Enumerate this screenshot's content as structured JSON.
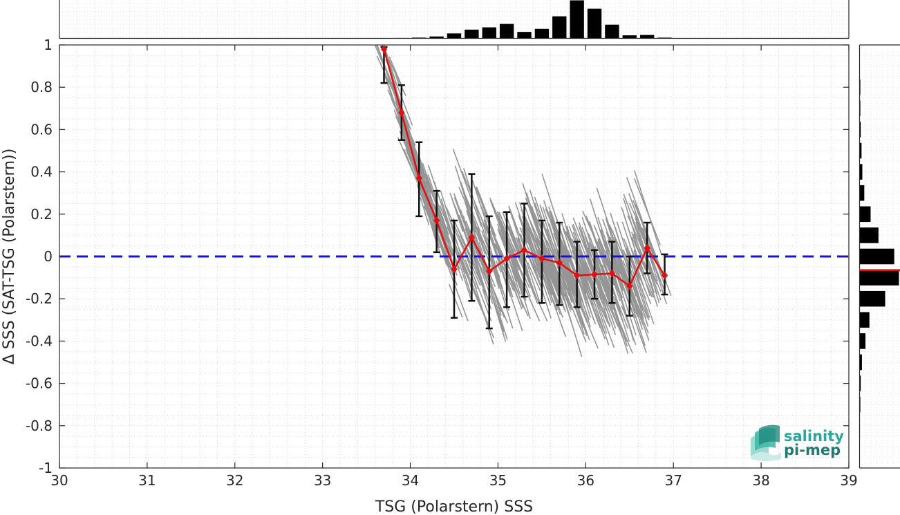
{
  "chart_data": {
    "type": "scatter",
    "title": "",
    "xlabel": "TSG (Polarstern) SSS",
    "ylabel": "Δ SSS (SAT-TSG (Polarstern))",
    "xlim": [
      30,
      39
    ],
    "ylim": [
      -1,
      1
    ],
    "xticks": [
      "30",
      "31",
      "32",
      "33",
      "34",
      "35",
      "36",
      "37",
      "38",
      "39"
    ],
    "yticks": [
      "1",
      "0.8",
      "0.6",
      "0.4",
      "0.2",
      "0",
      "-0.2",
      "-0.4",
      "-0.6",
      "-0.8",
      "-1"
    ],
    "grid": true,
    "zero_line": {
      "y": 0,
      "color": "#1414d6",
      "style": "dashed"
    },
    "binned_mean": {
      "color": "#e01010",
      "x": [
        33.7,
        33.9,
        34.1,
        34.3,
        34.5,
        34.7,
        34.9,
        35.1,
        35.3,
        35.5,
        35.7,
        35.9,
        36.1,
        36.3,
        36.5,
        36.7,
        36.9
      ],
      "y": [
        0.98,
        0.68,
        0.37,
        0.17,
        -0.06,
        0.09,
        -0.07,
        -0.01,
        0.03,
        -0.01,
        -0.03,
        -0.09,
        -0.085,
        -0.08,
        -0.14,
        0.04,
        -0.09
      ],
      "err_low": [
        0.82,
        0.55,
        0.19,
        0.02,
        -0.29,
        -0.21,
        -0.34,
        -0.24,
        -0.19,
        -0.22,
        -0.23,
        -0.24,
        -0.2,
        -0.22,
        -0.28,
        -0.08,
        -0.18
      ],
      "err_high": [
        0.99,
        0.81,
        0.54,
        0.31,
        0.17,
        0.39,
        0.19,
        0.21,
        0.25,
        0.17,
        0.16,
        0.07,
        0.03,
        0.07,
        0.0,
        0.16,
        0.01
      ]
    },
    "scatter_color": "#8a8a8a",
    "hist_x": {
      "bin_centers": [
        33.9,
        34.1,
        34.3,
        34.5,
        34.7,
        34.9,
        35.1,
        35.3,
        35.5,
        35.7,
        35.9,
        36.1,
        36.3,
        36.5,
        36.7,
        36.9
      ],
      "heights": [
        0.01,
        0.02,
        0.05,
        0.13,
        0.23,
        0.29,
        0.38,
        0.17,
        0.25,
        0.58,
        1.0,
        0.78,
        0.36,
        0.08,
        0.09,
        0.02
      ]
    },
    "hist_y": {
      "bin_centers": [
        0.8,
        0.7,
        0.6,
        0.5,
        0.4,
        0.3,
        0.2,
        0.1,
        0.0,
        -0.1,
        -0.2,
        -0.3,
        -0.4,
        -0.5,
        -0.6,
        -0.7,
        -0.8
      ],
      "widths": [
        0.02,
        0.02,
        0.03,
        0.05,
        0.07,
        0.12,
        0.28,
        0.48,
        0.88,
        1.0,
        0.65,
        0.25,
        0.15,
        0.06,
        0.03,
        0.02,
        0.01
      ],
      "mean_line": -0.065,
      "mean_color": "#e01010"
    }
  },
  "logo": {
    "line1": "salinity",
    "line2": "pi-mep"
  }
}
